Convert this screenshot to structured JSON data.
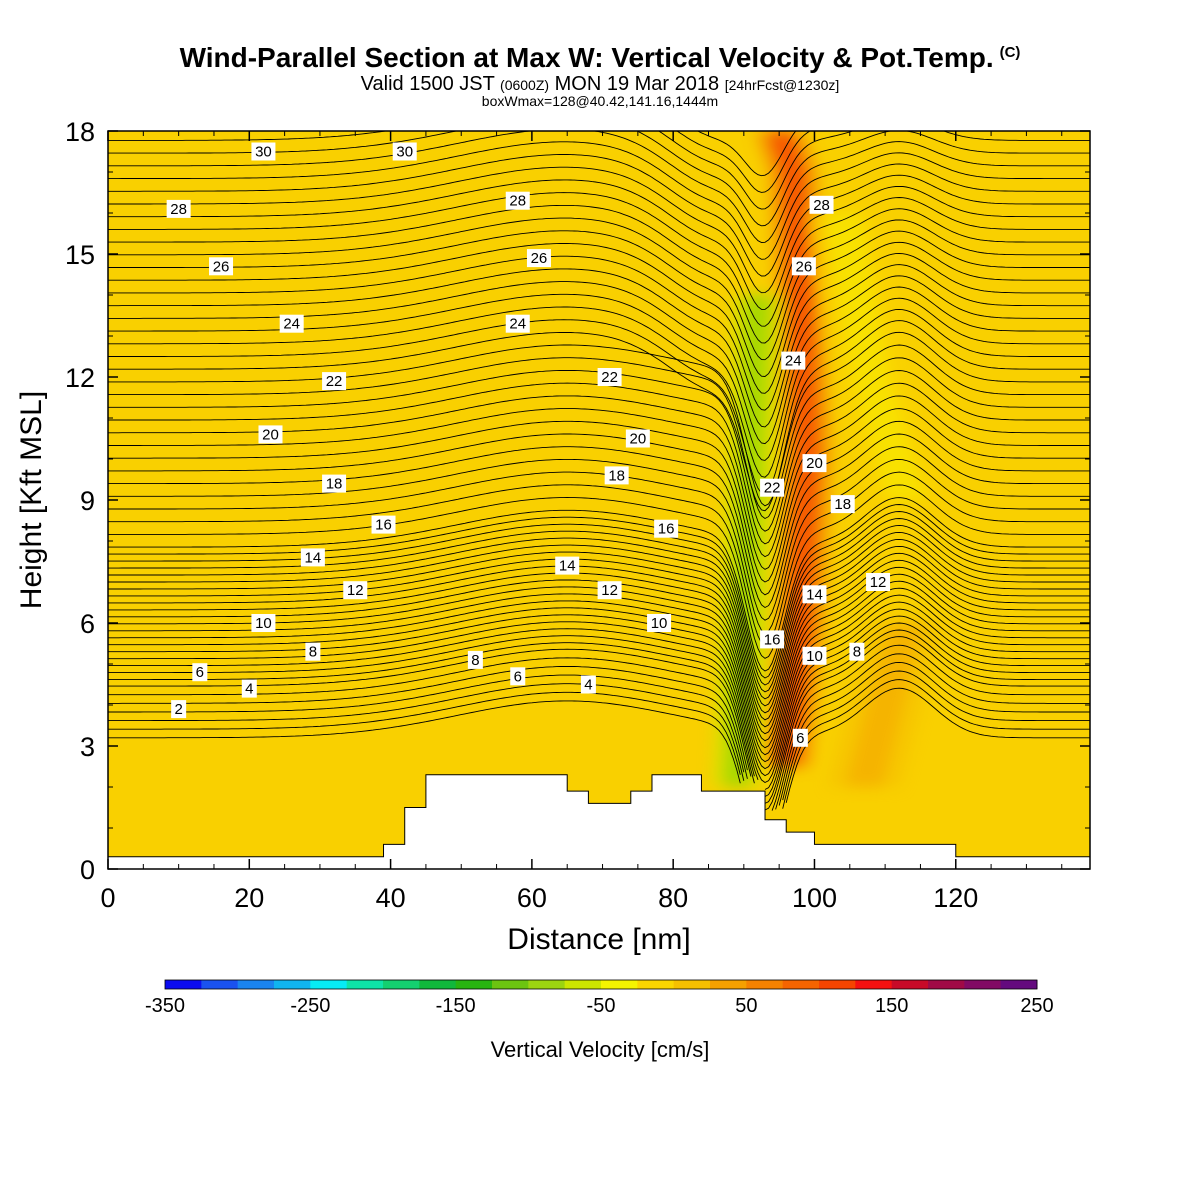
{
  "header": {
    "title": "Wind-Parallel Section at Max W: Vertical Velocity & Pot.Temp.",
    "copyright": "(C)",
    "valid_main": "Valid 1500 JST",
    "valid_zulu": "(0600Z)",
    "valid_date": "MON 19 Mar 2018",
    "forecast": "[24hrFcst@1230z]",
    "box_info": "boxWmax=128@40.42,141.16,1444m"
  },
  "chart_data": {
    "type": "cross-section contour",
    "xlabel": "Distance [nm]",
    "ylabel": "Height [Kft MSL]",
    "xlim": [
      0,
      139
    ],
    "ylim": [
      0,
      18
    ],
    "x_ticks": [
      "0",
      "20",
      "40",
      "60",
      "80",
      "100",
      "120"
    ],
    "y_ticks": [
      "0",
      "3",
      "6",
      "9",
      "12",
      "15",
      "18"
    ],
    "colorbar": {
      "title": "Vertical Velocity [cm/s]",
      "tick_labels": [
        "-350",
        "-250",
        "-150",
        "-50",
        "50",
        "150",
        "250"
      ],
      "min": -350,
      "max": 250,
      "step": 25,
      "colors": [
        "#0b0bf0",
        "#1a52f0",
        "#1a84f0",
        "#10b4f0",
        "#06ecf5",
        "#0ee4a8",
        "#14d070",
        "#10b83c",
        "#28b410",
        "#6cc410",
        "#9cd410",
        "#cce600",
        "#f4f400",
        "#fad600",
        "#f5c000",
        "#f5a000",
        "#f58200",
        "#f56400",
        "#f54400",
        "#f51010",
        "#c80a28",
        "#a00a46",
        "#820a64",
        "#640a7e"
      ]
    },
    "velocity_fields": [
      {
        "name": "updraft core",
        "x": [
          96,
          98,
          99,
          98,
          97,
          95
        ],
        "y": [
          2.5,
          6,
          10,
          14,
          17,
          18
        ],
        "w": 130
      },
      {
        "name": "downdraft core",
        "x": [
          89,
          90,
          91,
          92
        ],
        "y": [
          2,
          6,
          10,
          14
        ],
        "w": -120
      },
      {
        "name": "lee updraft",
        "x": [
          107,
          110,
          113
        ],
        "y": [
          2,
          4,
          6
        ],
        "w": 45
      },
      {
        "name": "lee downdraft band",
        "x": [
          104,
          108,
          113
        ],
        "y": [
          16,
          12,
          9
        ],
        "w": -30
      }
    ],
    "terrain": {
      "x": [
        0,
        39,
        39,
        42,
        42,
        45,
        45,
        65,
        65,
        68,
        68,
        74,
        74,
        77,
        77,
        84,
        84,
        93,
        93,
        96,
        96,
        100,
        100,
        120,
        120,
        123,
        123,
        139
      ],
      "y": [
        0.3,
        0.3,
        0.6,
        0.6,
        1.5,
        1.5,
        2.3,
        2.3,
        1.9,
        1.9,
        1.6,
        1.6,
        1.9,
        1.9,
        2.3,
        2.3,
        1.9,
        1.9,
        1.2,
        1.2,
        0.9,
        0.9,
        0.6,
        0.6,
        0.3,
        0.3,
        0.3,
        0.3
      ]
    },
    "isentrope_labels": [
      {
        "text": "30",
        "x": 22,
        "y": 17.5
      },
      {
        "text": "30",
        "x": 42,
        "y": 17.5
      },
      {
        "text": "28",
        "x": 10,
        "y": 16.1
      },
      {
        "text": "28",
        "x": 58,
        "y": 16.3
      },
      {
        "text": "28",
        "x": 101,
        "y": 16.2
      },
      {
        "text": "26",
        "x": 16,
        "y": 14.7
      },
      {
        "text": "26",
        "x": 61,
        "y": 14.9
      },
      {
        "text": "26",
        "x": 98.5,
        "y": 14.7
      },
      {
        "text": "24",
        "x": 26,
        "y": 13.3
      },
      {
        "text": "24",
        "x": 58,
        "y": 13.3
      },
      {
        "text": "24",
        "x": 97,
        "y": 12.4
      },
      {
        "text": "22",
        "x": 32,
        "y": 11.9
      },
      {
        "text": "22",
        "x": 71,
        "y": 12.0
      },
      {
        "text": "22",
        "x": 94,
        "y": 9.3
      },
      {
        "text": "20",
        "x": 23,
        "y": 10.6
      },
      {
        "text": "20",
        "x": 75,
        "y": 10.5
      },
      {
        "text": "20",
        "x": 100,
        "y": 9.9
      },
      {
        "text": "18",
        "x": 32,
        "y": 9.4
      },
      {
        "text": "18",
        "x": 72,
        "y": 9.6
      },
      {
        "text": "18",
        "x": 104,
        "y": 8.9
      },
      {
        "text": "16",
        "x": 39,
        "y": 8.4
      },
      {
        "text": "16",
        "x": 79,
        "y": 8.3
      },
      {
        "text": "16",
        "x": 94,
        "y": 5.6
      },
      {
        "text": "14",
        "x": 29,
        "y": 7.6
      },
      {
        "text": "14",
        "x": 65,
        "y": 7.4
      },
      {
        "text": "14",
        "x": 100,
        "y": 6.7
      },
      {
        "text": "12",
        "x": 35,
        "y": 6.8
      },
      {
        "text": "12",
        "x": 71,
        "y": 6.8
      },
      {
        "text": "12",
        "x": 109,
        "y": 7.0
      },
      {
        "text": "10",
        "x": 22,
        "y": 6.0
      },
      {
        "text": "10",
        "x": 78,
        "y": 6.0
      },
      {
        "text": "10",
        "x": 100,
        "y": 5.2
      },
      {
        "text": "8",
        "x": 29,
        "y": 5.3
      },
      {
        "text": "8",
        "x": 52,
        "y": 5.1
      },
      {
        "text": "8",
        "x": 106,
        "y": 5.3
      },
      {
        "text": "6",
        "x": 13,
        "y": 4.8
      },
      {
        "text": "6",
        "x": 58,
        "y": 4.7
      },
      {
        "text": "6",
        "x": 98,
        "y": 3.2
      },
      {
        "text": "4",
        "x": 20,
        "y": 4.4
      },
      {
        "text": "4",
        "x": 68,
        "y": 4.5
      },
      {
        "text": "2",
        "x": 10,
        "y": 3.9
      }
    ]
  }
}
